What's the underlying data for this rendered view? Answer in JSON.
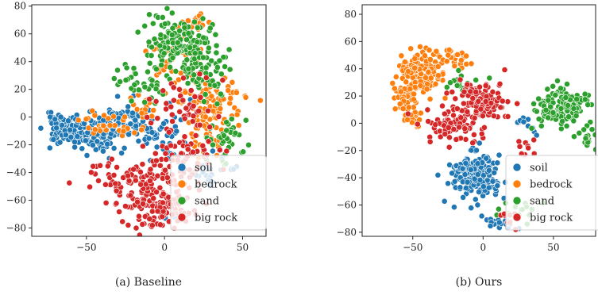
{
  "chart_data": [
    {
      "type": "scatter",
      "caption": "(a) Baseline",
      "xlim": [
        -85,
        65
      ],
      "ylim": [
        -86,
        81
      ],
      "xticks": [
        "-50",
        "0",
        "50"
      ],
      "yticks": [
        "-80",
        "-60",
        "-40",
        "-20",
        "0",
        "20",
        "40",
        "60",
        "80"
      ],
      "grid": false,
      "legend_position": "lower-right",
      "series": [
        {
          "name": "soil",
          "color": "#1f77b4",
          "seed": 11,
          "clusters": [
            {
              "cx": -65,
              "cy": -8,
              "sx": 6,
              "sy": 5,
              "n": 80
            },
            {
              "cx": -45,
              "cy": -12,
              "sx": 8,
              "sy": 7,
              "n": 100
            },
            {
              "cx": -25,
              "cy": -4,
              "sx": 8,
              "sy": 9,
              "n": 60
            },
            {
              "cx": 0,
              "cy": -15,
              "sx": 8,
              "sy": 8,
              "n": 40
            },
            {
              "cx": 30,
              "cy": -40,
              "sx": 8,
              "sy": 7,
              "n": 30
            },
            {
              "cx": 5,
              "cy": -72,
              "sx": 4,
              "sy": 4,
              "n": 10
            }
          ]
        },
        {
          "name": "bedrock",
          "color": "#ff7f0e",
          "seed": 23,
          "clusters": [
            {
              "cx": 25,
              "cy": 10,
              "sx": 10,
              "sy": 10,
              "n": 60
            },
            {
              "cx": 30,
              "cy": -10,
              "sx": 9,
              "sy": 9,
              "n": 50
            },
            {
              "cx": 5,
              "cy": 40,
              "sx": 8,
              "sy": 9,
              "n": 40
            },
            {
              "cx": 20,
              "cy": 68,
              "sx": 5,
              "sy": 3,
              "n": 15
            },
            {
              "cx": -38,
              "cy": -8,
              "sx": 10,
              "sy": 6,
              "n": 30
            },
            {
              "cx": -15,
              "cy": 8,
              "sx": 6,
              "sy": 6,
              "n": 15
            },
            {
              "cx": 45,
              "cy": 18,
              "sx": 6,
              "sy": 5,
              "n": 15
            }
          ]
        },
        {
          "name": "sand",
          "color": "#2ca02c",
          "seed": 37,
          "clusters": [
            {
              "cx": 10,
              "cy": 55,
              "sx": 10,
              "sy": 10,
              "n": 140
            },
            {
              "cx": 25,
              "cy": 35,
              "sx": 8,
              "sy": 10,
              "n": 70
            },
            {
              "cx": 40,
              "cy": -15,
              "sx": 8,
              "sy": 8,
              "n": 40
            },
            {
              "cx": -10,
              "cy": 20,
              "sx": 6,
              "sy": 6,
              "n": 20
            },
            {
              "cx": -25,
              "cy": 30,
              "sx": 6,
              "sy": 6,
              "n": 15
            }
          ]
        },
        {
          "name": "big rock",
          "color": "#d62728",
          "seed": 53,
          "clusters": [
            {
              "cx": -5,
              "cy": -65,
              "sx": 12,
              "sy": 7,
              "n": 130
            },
            {
              "cx": -20,
              "cy": -45,
              "sx": 12,
              "sy": 6,
              "n": 60
            },
            {
              "cx": 5,
              "cy": -35,
              "sx": 10,
              "sy": 8,
              "n": 40
            },
            {
              "cx": 10,
              "cy": 5,
              "sx": 12,
              "sy": 12,
              "n": 50
            },
            {
              "cx": -35,
              "cy": -38,
              "sx": 5,
              "sy": 5,
              "n": 10
            },
            {
              "cx": 20,
              "cy": -25,
              "sx": 10,
              "sy": 6,
              "n": 25
            }
          ]
        }
      ]
    },
    {
      "type": "scatter",
      "caption": "(b) Ours",
      "xlim": [
        -86,
        80
      ],
      "ylim": [
        -83,
        87
      ],
      "xticks": [
        "-50",
        "0",
        "50"
      ],
      "yticks": [
        "-80",
        "-60",
        "-40",
        "-20",
        "0",
        "20",
        "40",
        "60",
        "80"
      ],
      "grid": false,
      "legend_position": "lower-right",
      "series": [
        {
          "name": "soil",
          "color": "#1f77b4",
          "seed": 71,
          "clusters": [
            {
              "cx": -5,
              "cy": -38,
              "sx": 9,
              "sy": 8,
              "n": 200
            },
            {
              "cx": 10,
              "cy": -72,
              "sx": 8,
              "sy": 3,
              "n": 20
            },
            {
              "cx": 30,
              "cy": 0,
              "sx": 4,
              "sy": 3,
              "n": 10
            }
          ]
        },
        {
          "name": "bedrock",
          "color": "#ff7f0e",
          "seed": 83,
          "clusters": [
            {
              "cx": -45,
              "cy": 38,
              "sx": 8,
              "sy": 8,
              "n": 150
            },
            {
              "cx": -55,
              "cy": 18,
              "sx": 6,
              "sy": 8,
              "n": 50
            },
            {
              "cx": -20,
              "cy": 48,
              "sx": 5,
              "sy": 4,
              "n": 20
            },
            {
              "cx": -50,
              "cy": 2,
              "sx": 4,
              "sy": 3,
              "n": 15
            }
          ]
        },
        {
          "name": "sand",
          "color": "#2ca02c",
          "seed": 97,
          "clusters": [
            {
              "cx": 55,
              "cy": 12,
              "sx": 9,
              "sy": 7,
              "n": 150
            },
            {
              "cx": 75,
              "cy": -10,
              "sx": 4,
              "sy": 4,
              "n": 20
            },
            {
              "cx": 25,
              "cy": -65,
              "sx": 6,
              "sy": 5,
              "n": 15
            },
            {
              "cx": -15,
              "cy": 30,
              "sx": 6,
              "sy": 5,
              "n": 15
            }
          ]
        },
        {
          "name": "big rock",
          "color": "#d62728",
          "seed": 109,
          "clusters": [
            {
              "cx": 0,
              "cy": 15,
              "sx": 9,
              "sy": 8,
              "n": 120
            },
            {
              "cx": -20,
              "cy": 0,
              "sx": 10,
              "sy": 7,
              "n": 80
            },
            {
              "cx": 20,
              "cy": -70,
              "sx": 4,
              "sy": 3,
              "n": 10
            },
            {
              "cx": 30,
              "cy": -20,
              "sx": 5,
              "sy": 5,
              "n": 10
            }
          ]
        }
      ]
    }
  ]
}
